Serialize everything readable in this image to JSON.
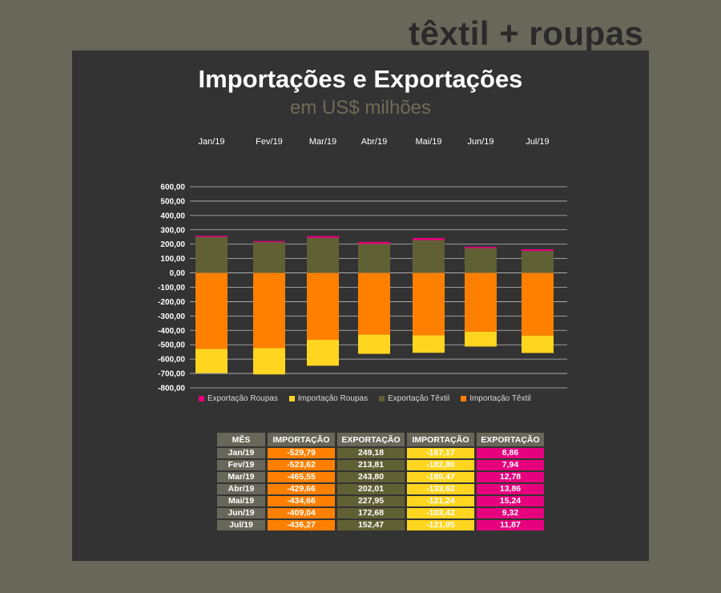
{
  "brand": "têxtil + roupas",
  "colors": {
    "importacao_textil": "#ff8000",
    "importacao_roupas": "#ffd520",
    "exportacao_textil": "#606035",
    "exportacao_roupas": "#e6007e"
  },
  "chart_data": {
    "type": "bar",
    "stacked": true,
    "title": "Importações e Exportações",
    "subtitle": "em US$ milhões",
    "categories": [
      "Jan/19",
      "Fev/19",
      "Mar/19",
      "Abr/19",
      "Mai/19",
      "Jun/19",
      "Jul/19"
    ],
    "y_ticks": [
      "600,00",
      "500,00",
      "400,00",
      "300,00",
      "200,00",
      "100,00",
      "0,00",
      "-100,00",
      "-200,00",
      "-300,00",
      "-400,00",
      "-500,00",
      "-600,00",
      "-700,00",
      "-800,00"
    ],
    "ylim": [
      -800,
      600
    ],
    "grid": true,
    "legend_position": "bottom",
    "series": [
      {
        "name": "Exportação Roupas",
        "color_key": "exportacao_roupas",
        "values": [
          8.86,
          7.94,
          12.78,
          13.86,
          15.24,
          9.32,
          11.87
        ]
      },
      {
        "name": "Importação Roupas",
        "color_key": "importacao_roupas",
        "values": [
          -167.17,
          -182.8,
          -180.47,
          -133.62,
          -121.24,
          -103.42,
          -121.05
        ]
      },
      {
        "name": "Exportação Têxtil",
        "color_key": "exportacao_textil",
        "values": [
          249.18,
          213.81,
          243.8,
          202.01,
          227.95,
          172.68,
          152.47
        ]
      },
      {
        "name": "Importação Têxtil",
        "color_key": "importacao_textil",
        "values": [
          -529.79,
          -523.62,
          -465.55,
          -429.66,
          -434.66,
          -409.04,
          -436.27
        ]
      }
    ]
  },
  "table": {
    "headers": [
      "MÊS",
      "IMPORTAÇÃO",
      "EXPORTAÇÃO",
      "IMPORTAÇÃO",
      "EXPORTAÇÃO"
    ],
    "rows": [
      [
        "Jan/19",
        "-529,79",
        "249,18",
        "-167,17",
        "8,86"
      ],
      [
        "Fev/19",
        "-523,62",
        "213,81",
        "-182,80",
        "7,94"
      ],
      [
        "Mar/19",
        "-465,55",
        "243,80",
        "-180,47",
        "12,78"
      ],
      [
        "Abr/19",
        "-429,66",
        "202,01",
        "-133,62",
        "13,86"
      ],
      [
        "Mai/19",
        "-434,66",
        "227,95",
        "-121,24",
        "15,24"
      ],
      [
        "Jun/19",
        "-409,04",
        "172,68",
        "-103,42",
        "9,32"
      ],
      [
        "Jul/19",
        "-436,27",
        "152,47",
        "-121,05",
        "11,87"
      ]
    ]
  }
}
